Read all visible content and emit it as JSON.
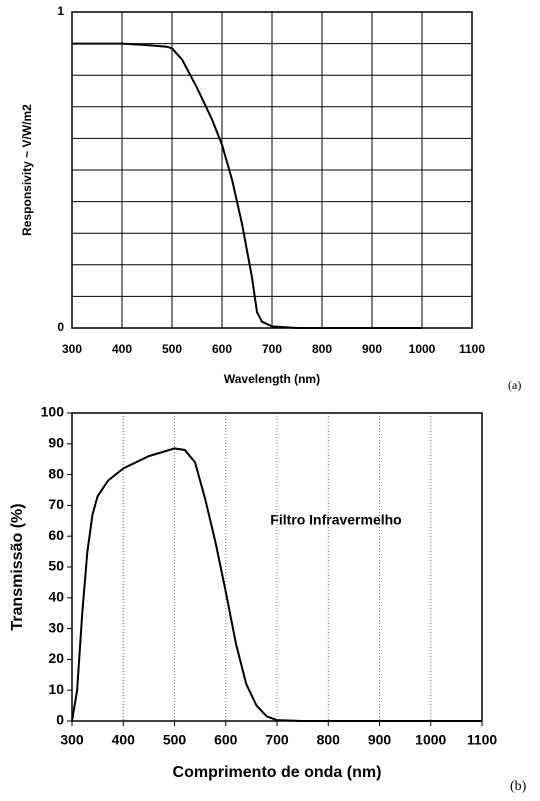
{
  "chart_data": [
    {
      "type": "line",
      "panel_label": "(a)",
      "xlabel": "Wavelength (nm)",
      "ylabel": "Responsivity ~ V/W/m2",
      "x": [
        300,
        400,
        450,
        490,
        500,
        520,
        550,
        580,
        600,
        620,
        640,
        660,
        670,
        680,
        700,
        750,
        800,
        900,
        1000
      ],
      "values": [
        0.9,
        0.9,
        0.895,
        0.89,
        0.885,
        0.85,
        0.76,
        0.66,
        0.58,
        0.47,
        0.33,
        0.16,
        0.05,
        0.02,
        0.005,
        0,
        0,
        0,
        0
      ],
      "color": "#000000",
      "xlim": [
        300,
        1100
      ],
      "ylim": [
        0,
        1
      ],
      "xticks": [
        300,
        400,
        500,
        600,
        700,
        800,
        900,
        1000,
        1100
      ],
      "yticks": [
        0,
        1
      ],
      "ygrid": [
        0.1,
        0.2,
        0.3,
        0.4,
        0.5,
        0.6,
        0.7,
        0.8,
        0.9
      ],
      "grid_style": "solid",
      "grid_axis": "both"
    },
    {
      "type": "line",
      "panel_label": "(b)",
      "xlabel": "Comprimento de onda (nm)",
      "ylabel": "Transmissão (%)",
      "annotation": "Filtro Infravermelho",
      "x": [
        300,
        310,
        320,
        330,
        340,
        350,
        370,
        400,
        450,
        500,
        520,
        540,
        560,
        580,
        600,
        620,
        640,
        660,
        680,
        700,
        750,
        1100
      ],
      "values": [
        0,
        10,
        35,
        55,
        67,
        73,
        78,
        82,
        86,
        88.5,
        88,
        84,
        72,
        58,
        42,
        25,
        12,
        5,
        1.5,
        0.3,
        0,
        0
      ],
      "color": "#000000",
      "xlim": [
        300,
        1100
      ],
      "ylim": [
        0,
        100
      ],
      "xticks": [
        300,
        400,
        500,
        600,
        700,
        800,
        900,
        1000,
        1100
      ],
      "yticks": [
        0,
        10,
        20,
        30,
        40,
        50,
        60,
        70,
        80,
        90,
        100
      ],
      "grid_style": "dotted",
      "grid_axis": "x"
    }
  ]
}
